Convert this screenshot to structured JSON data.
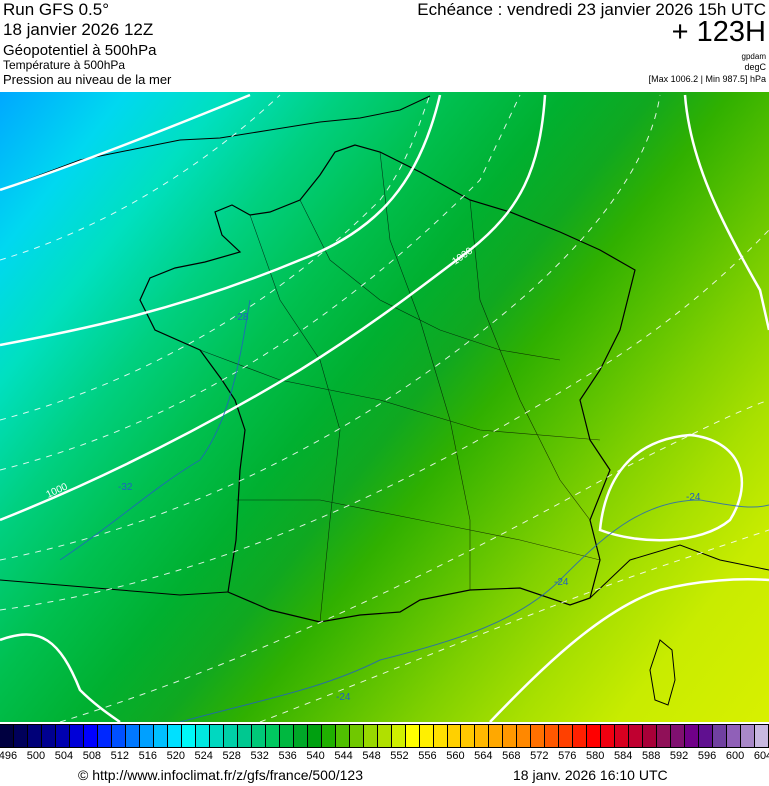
{
  "header": {
    "run": "Run GFS 0.5°",
    "run_date": "18 janvier 2026 12Z",
    "field1": "Géopotentiel à 500hPa",
    "field2": "Température à 500hPa",
    "field3": "Pression au niveau de la mer",
    "echeance": "Echéance : vendredi 23 janvier 2026 15h UTC",
    "lead": "+ 123H",
    "unit1": "gpdam",
    "unit2": "degC",
    "pressure_range": "[Max 1006.2 | Min 987.5] hPa"
  },
  "map": {
    "isobar_labels": [
      "1000",
      "1000"
    ],
    "isotherm_labels": [
      "-32",
      "-28",
      "-24",
      "-24",
      "-24"
    ]
  },
  "scale": {
    "labels": [
      "496",
      "500",
      "504",
      "508",
      "512",
      "516",
      "520",
      "524",
      "528",
      "532",
      "536",
      "540",
      "544",
      "548",
      "552",
      "556",
      "560",
      "564",
      "568",
      "572",
      "576",
      "580",
      "584",
      "588",
      "592",
      "596",
      "600",
      "604"
    ],
    "colors": [
      "#000040",
      "#00005a",
      "#000078",
      "#000090",
      "#0000b0",
      "#0000d8",
      "#0000ff",
      "#0028ff",
      "#0050ff",
      "#0078ff",
      "#00a0ff",
      "#00c0ff",
      "#00e0ff",
      "#00f8f8",
      "#00e8e0",
      "#00d8c0",
      "#00d0a8",
      "#00c890",
      "#00c878",
      "#00c860",
      "#00b840",
      "#00a828",
      "#00a010",
      "#20b000",
      "#50c000",
      "#70c800",
      "#98d800",
      "#b0e000",
      "#d0f000",
      "#ffff00",
      "#fff000",
      "#ffe000",
      "#ffd000",
      "#ffc800",
      "#ffb800",
      "#ffa800",
      "#ff9800",
      "#ff8800",
      "#ff7000",
      "#ff5800",
      "#ff4000",
      "#ff2000",
      "#ff0000",
      "#f00010",
      "#d80020",
      "#c00030",
      "#a80038",
      "#901058",
      "#801070",
      "#700088",
      "#601090",
      "#7040a0",
      "#9060b8",
      "#a888c8",
      "#c8b8e0"
    ]
  },
  "footer": {
    "url": "© http://www.infoclimat.fr/z/gfs/france/500/123",
    "generated": "18 janv. 2026 16:10 UTC"
  }
}
